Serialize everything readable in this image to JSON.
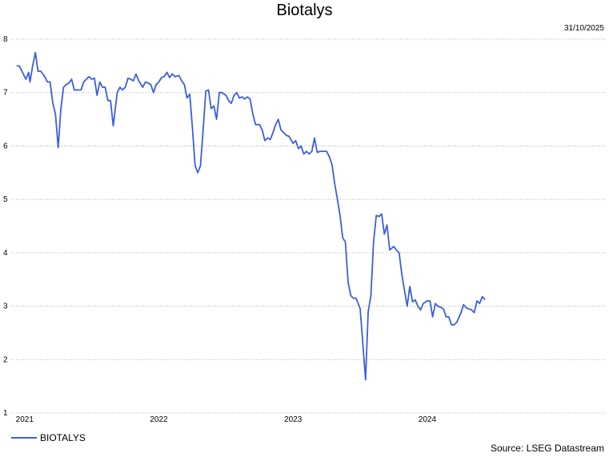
{
  "chart_data": {
    "type": "line",
    "title": "Biotalys",
    "date_label": "31/10/2025",
    "source": "Source: LSEG Datastream",
    "xlabel": "",
    "ylabel": "",
    "ylim": [
      1,
      8
    ],
    "yticks": [
      1,
      2,
      3,
      4,
      5,
      6,
      7,
      8
    ],
    "xlim": [
      2020.9,
      2025.33
    ],
    "xticks": [
      {
        "label": "2021",
        "value": 2021
      },
      {
        "label": "2022",
        "value": 2022
      },
      {
        "label": "2023",
        "value": 2023
      },
      {
        "label": "2024",
        "value": 2024
      }
    ],
    "grid": true,
    "legend_position": "bottom-left",
    "color": "#3b5fe0",
    "series": [
      {
        "name": "BIOTALYS",
        "points": [
          [
            2020.94,
            7.5
          ],
          [
            2020.96,
            7.5
          ],
          [
            2020.99,
            7.35
          ],
          [
            2021.01,
            7.25
          ],
          [
            2021.03,
            7.38
          ],
          [
            2021.04,
            7.2
          ],
          [
            2021.06,
            7.5
          ],
          [
            2021.08,
            7.75
          ],
          [
            2021.1,
            7.4
          ],
          [
            2021.12,
            7.4
          ],
          [
            2021.15,
            7.3
          ],
          [
            2021.17,
            7.2
          ],
          [
            2021.19,
            7.2
          ],
          [
            2021.21,
            6.8
          ],
          [
            2021.23,
            6.6
          ],
          [
            2021.25,
            5.97
          ],
          [
            2021.27,
            6.7
          ],
          [
            2021.29,
            7.1
          ],
          [
            2021.31,
            7.15
          ],
          [
            2021.33,
            7.18
          ],
          [
            2021.35,
            7.25
          ],
          [
            2021.37,
            7.05
          ],
          [
            2021.4,
            7.05
          ],
          [
            2021.42,
            7.05
          ],
          [
            2021.44,
            7.2
          ],
          [
            2021.46,
            7.25
          ],
          [
            2021.48,
            7.3
          ],
          [
            2021.5,
            7.25
          ],
          [
            2021.52,
            7.27
          ],
          [
            2021.54,
            6.95
          ],
          [
            2021.56,
            7.2
          ],
          [
            2021.58,
            7.1
          ],
          [
            2021.6,
            7.1
          ],
          [
            2021.62,
            6.85
          ],
          [
            2021.64,
            6.85
          ],
          [
            2021.66,
            6.38
          ],
          [
            2021.69,
            7.0
          ],
          [
            2021.71,
            7.1
          ],
          [
            2021.73,
            7.05
          ],
          [
            2021.75,
            7.1
          ],
          [
            2021.77,
            7.27
          ],
          [
            2021.79,
            7.25
          ],
          [
            2021.81,
            7.22
          ],
          [
            2021.83,
            7.35
          ],
          [
            2021.85,
            7.22
          ],
          [
            2021.88,
            7.1
          ],
          [
            2021.9,
            7.2
          ],
          [
            2021.92,
            7.18
          ],
          [
            2021.94,
            7.15
          ],
          [
            2021.96,
            7.0
          ],
          [
            2021.98,
            7.15
          ],
          [
            2022.0,
            7.2
          ],
          [
            2022.02,
            7.28
          ],
          [
            2022.04,
            7.3
          ],
          [
            2022.06,
            7.38
          ],
          [
            2022.08,
            7.28
          ],
          [
            2022.1,
            7.35
          ],
          [
            2022.12,
            7.3
          ],
          [
            2022.15,
            7.32
          ],
          [
            2022.17,
            7.22
          ],
          [
            2022.19,
            7.15
          ],
          [
            2022.21,
            6.9
          ],
          [
            2022.23,
            6.97
          ],
          [
            2022.25,
            6.35
          ],
          [
            2022.27,
            5.63
          ],
          [
            2022.29,
            5.5
          ],
          [
            2022.31,
            5.63
          ],
          [
            2022.33,
            6.3
          ],
          [
            2022.35,
            7.03
          ],
          [
            2022.37,
            7.05
          ],
          [
            2022.39,
            6.7
          ],
          [
            2022.41,
            6.75
          ],
          [
            2022.43,
            6.5
          ],
          [
            2022.45,
            7.0
          ],
          [
            2022.47,
            7.0
          ],
          [
            2022.5,
            6.95
          ],
          [
            2022.52,
            6.85
          ],
          [
            2022.54,
            6.8
          ],
          [
            2022.56,
            6.95
          ],
          [
            2022.58,
            7.0
          ],
          [
            2022.6,
            6.9
          ],
          [
            2022.62,
            6.92
          ],
          [
            2022.64,
            6.88
          ],
          [
            2022.66,
            6.92
          ],
          [
            2022.68,
            6.88
          ],
          [
            2022.7,
            6.6
          ],
          [
            2022.72,
            6.4
          ],
          [
            2022.75,
            6.4
          ],
          [
            2022.77,
            6.3
          ],
          [
            2022.79,
            6.1
          ],
          [
            2022.81,
            6.15
          ],
          [
            2022.83,
            6.12
          ],
          [
            2022.85,
            6.25
          ],
          [
            2022.87,
            6.4
          ],
          [
            2022.89,
            6.5
          ],
          [
            2022.91,
            6.3
          ],
          [
            2022.93,
            6.25
          ],
          [
            2022.95,
            6.2
          ],
          [
            2022.97,
            6.18
          ],
          [
            2023.0,
            6.05
          ],
          [
            2023.02,
            6.1
          ],
          [
            2023.04,
            5.95
          ],
          [
            2023.06,
            6.0
          ],
          [
            2023.08,
            5.85
          ],
          [
            2023.1,
            5.9
          ],
          [
            2023.12,
            5.85
          ],
          [
            2023.14,
            5.9
          ],
          [
            2023.16,
            6.15
          ],
          [
            2023.18,
            5.88
          ],
          [
            2023.2,
            5.9
          ],
          [
            2023.22,
            5.9
          ],
          [
            2023.25,
            5.9
          ],
          [
            2023.27,
            5.8
          ],
          [
            2023.29,
            5.65
          ],
          [
            2023.31,
            5.3
          ],
          [
            2023.33,
            5.0
          ],
          [
            2023.35,
            4.7
          ],
          [
            2023.37,
            4.28
          ],
          [
            2023.39,
            4.2
          ],
          [
            2023.41,
            3.45
          ],
          [
            2023.43,
            3.2
          ],
          [
            2023.45,
            3.15
          ],
          [
            2023.47,
            3.15
          ],
          [
            2023.5,
            2.95
          ],
          [
            2023.52,
            2.3
          ],
          [
            2023.54,
            1.62
          ],
          [
            2023.56,
            2.9
          ],
          [
            2023.58,
            3.2
          ],
          [
            2023.6,
            4.2
          ],
          [
            2023.62,
            4.7
          ],
          [
            2023.64,
            4.68
          ],
          [
            2023.66,
            4.73
          ],
          [
            2023.68,
            4.35
          ],
          [
            2023.7,
            4.52
          ],
          [
            2023.72,
            4.05
          ],
          [
            2023.75,
            4.12
          ],
          [
            2023.77,
            4.05
          ],
          [
            2023.79,
            4.0
          ],
          [
            2023.81,
            3.6
          ],
          [
            2023.83,
            3.3
          ],
          [
            2023.85,
            3.0
          ],
          [
            2023.87,
            3.37
          ],
          [
            2023.89,
            3.08
          ],
          [
            2023.91,
            3.12
          ],
          [
            2023.93,
            3.0
          ],
          [
            2023.95,
            2.93
          ],
          [
            2023.97,
            3.05
          ],
          [
            2024.0,
            3.1
          ],
          [
            2024.02,
            3.1
          ],
          [
            2024.04,
            2.8
          ],
          [
            2024.06,
            3.05
          ],
          [
            2024.08,
            3.0
          ],
          [
            2024.1,
            2.98
          ],
          [
            2024.12,
            2.95
          ],
          [
            2024.14,
            2.8
          ],
          [
            2024.16,
            2.8
          ],
          [
            2024.18,
            2.65
          ],
          [
            2024.2,
            2.65
          ],
          [
            2024.22,
            2.7
          ],
          [
            2024.25,
            2.87
          ],
          [
            2024.27,
            3.03
          ],
          [
            2024.29,
            2.97
          ],
          [
            2024.31,
            2.95
          ],
          [
            2024.33,
            2.93
          ],
          [
            2024.35,
            2.88
          ],
          [
            2024.37,
            3.1
          ],
          [
            2024.39,
            3.05
          ],
          [
            2024.41,
            3.18
          ],
          [
            2024.43,
            3.12
          ]
        ]
      }
    ]
  }
}
